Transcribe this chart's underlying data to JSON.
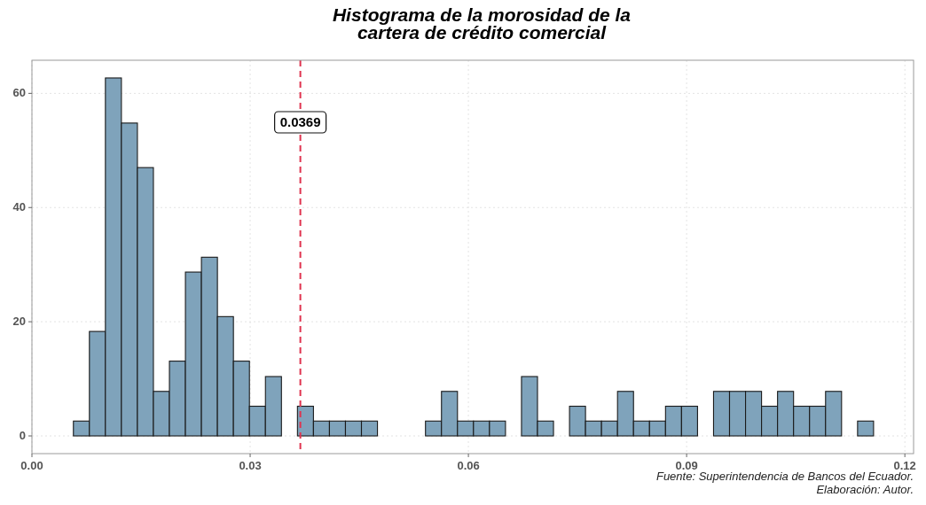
{
  "chart_data": {
    "type": "histogram",
    "title": "Histograma de la morosidad de la\ncartera de crédito comercial",
    "bins": [
      0.0057,
      0.0079,
      0.0101,
      0.0123,
      0.0145,
      0.0167,
      0.0189,
      0.0211,
      0.0233,
      0.0255,
      0.0277,
      0.0299,
      0.0321,
      0.0343,
      0.0365,
      0.0387,
      0.0409,
      0.0431,
      0.0453,
      0.0475,
      0.0497,
      0.0519,
      0.0541,
      0.0563,
      0.0585,
      0.0607,
      0.0629,
      0.0651,
      0.0673,
      0.0695,
      0.0717,
      0.0739,
      0.0761,
      0.0783,
      0.0805,
      0.0827,
      0.0849,
      0.0871,
      0.0893,
      0.0915,
      0.0937,
      0.0959,
      0.0981,
      0.1003,
      0.1025,
      0.1047,
      0.1069,
      0.1091,
      0.1113,
      0.1135,
      0.1157
    ],
    "values": [
      2.6,
      18.3,
      62.7,
      54.8,
      47.0,
      7.8,
      13.1,
      28.7,
      31.3,
      20.9,
      13.1,
      5.2,
      10.4,
      0,
      5.2,
      2.6,
      2.6,
      2.6,
      2.6,
      0,
      0,
      0,
      2.6,
      7.8,
      2.6,
      2.6,
      2.6,
      0,
      10.4,
      2.6,
      0,
      5.2,
      2.6,
      2.6,
      7.8,
      2.6,
      2.6,
      5.2,
      5.2,
      0,
      7.8,
      7.8,
      7.8,
      5.2,
      7.8,
      5.2,
      5.2,
      7.8,
      0,
      2.6
    ],
    "color": "#7fa3bb",
    "xlim": [
      0,
      0.1212
    ],
    "ylim": [
      -3.1,
      65.8
    ],
    "xticks": [
      {
        "value": 0,
        "label": "0.00"
      },
      0.03,
      0.06,
      0.09,
      {
        "value": 0.12,
        "label": "0.12"
      }
    ],
    "yticks": [
      0,
      20,
      40,
      60
    ],
    "grid": true,
    "ref_lines": [
      {
        "axis": "x",
        "value": 0.0369,
        "label": "0.0369",
        "color": "#e0334f",
        "line_style": "dashed"
      }
    ],
    "annotations": [
      "Fuente: Superintendencia de Bancos del Ecuador.",
      "Elaboración: Autor."
    ]
  }
}
